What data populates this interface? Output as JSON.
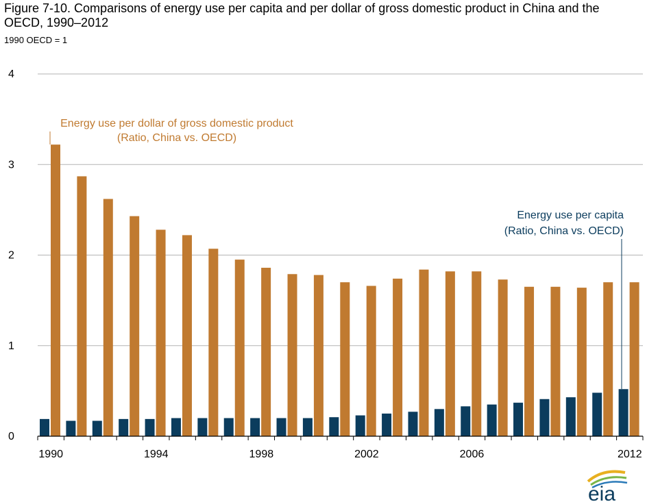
{
  "chart_data": {
    "type": "bar",
    "title": "Figure 7-10. Comparisons of energy use per capita and per dollar of gross domestic product in China and the OECD, 1990–2012",
    "subtitle": "1990 OECD = 1",
    "xlabel": "",
    "ylabel": "",
    "ylim": [
      0,
      4
    ],
    "yticks": [
      "0",
      "1",
      "2",
      "3",
      "4"
    ],
    "grid": true,
    "categories": [
      "1990",
      "1991",
      "1992",
      "1993",
      "1994",
      "1995",
      "1996",
      "1997",
      "1998",
      "1999",
      "2000",
      "2001",
      "2002",
      "2003",
      "2004",
      "2005",
      "2006",
      "2007",
      "2008",
      "2009",
      "2010",
      "2011",
      "2012"
    ],
    "xtick_labels": [
      "1990",
      "1994",
      "1998",
      "2002",
      "2006",
      "2012"
    ],
    "series": [
      {
        "name": "Energy use per capita",
        "color": "#0b3c5d",
        "values": [
          0.19,
          0.17,
          0.17,
          0.19,
          0.19,
          0.2,
          0.2,
          0.2,
          0.2,
          0.2,
          0.2,
          0.21,
          0.23,
          0.25,
          0.27,
          0.3,
          0.33,
          0.35,
          0.37,
          0.41,
          0.43,
          0.48,
          0.52
        ]
      },
      {
        "name": "Energy use per dollar of gross domestic product",
        "color": "#c07a30",
        "values": [
          3.22,
          2.87,
          2.62,
          2.43,
          2.28,
          2.22,
          2.07,
          1.95,
          1.86,
          1.79,
          1.78,
          1.7,
          1.66,
          1.74,
          1.84,
          1.82,
          1.82,
          1.73,
          1.65,
          1.65,
          1.64,
          1.7,
          1.7
        ]
      }
    ],
    "annotations": {
      "gdp_line1": "Energy use per dollar of gross domestic product",
      "gdp_line2": "(Ratio, China vs. OECD)",
      "capita_line1": "Energy use per capita",
      "capita_line2": "(Ratio, China vs. OECD)"
    }
  },
  "logo": {
    "text": "eia"
  }
}
